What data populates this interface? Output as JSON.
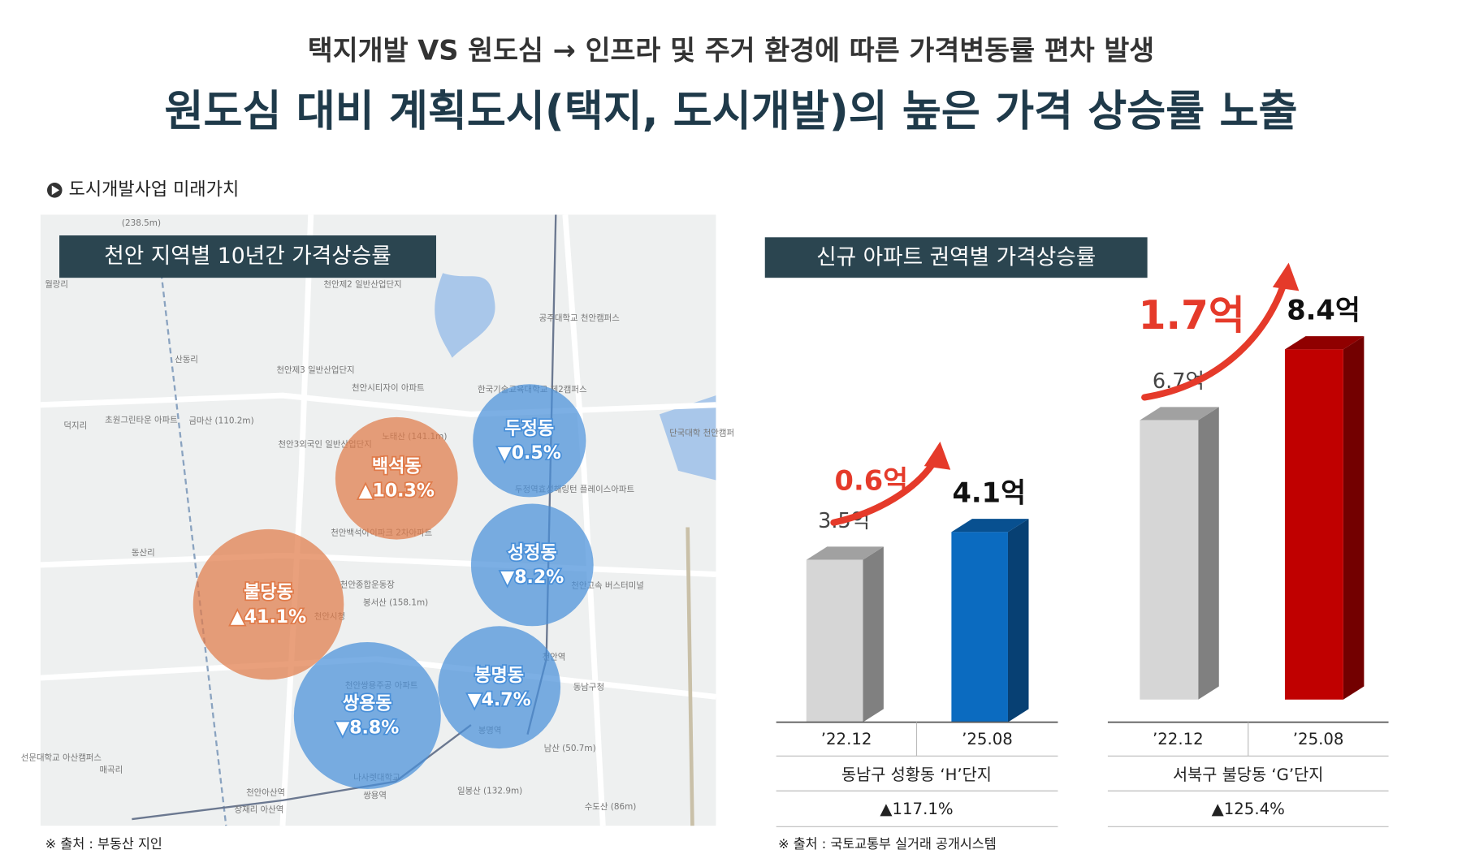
{
  "header": {
    "subtitle": "택지개발 VS 원도심 → 인프라 및 주거 환경에 따른 가격변동률 편차 발생",
    "title": "원도심 대비 계획도시(택지, 도시개발)의 높은 가격 상승률 노출"
  },
  "section_label": "도시개발사업 미래가치",
  "map": {
    "title": "천안 지역별 10년간 가격상승률",
    "regions": [
      {
        "name": "두정동",
        "change": "▼0.5%",
        "color": "#4a90d9"
      },
      {
        "name": "백석동",
        "change": "▲10.3%",
        "color": "#e07b4a"
      },
      {
        "name": "불당동",
        "change": "▲41.1%",
        "color": "#e07b4a"
      },
      {
        "name": "성정동",
        "change": "▼8.2%",
        "color": "#4a90d9"
      },
      {
        "name": "봉명동",
        "change": "▼4.7%",
        "color": "#4a90d9"
      },
      {
        "name": "쌍용동",
        "change": "▼8.8%",
        "color": "#4a90d9"
      }
    ],
    "places": [
      "(238.5m)",
      "월랑리",
      "천안제2 일반산업단지",
      "공주대학교 천안캠퍼스",
      "산동리",
      "천안제3 일반산업단지",
      "천안시티자이 아파트",
      "한국기술교육대학교 제2캠퍼스",
      "덕지리",
      "초원그린타운 아파트",
      "금마산 (110.2m)",
      "노태산 (141.1m)",
      "천안3외국인 일반산업단지",
      "단국대학 천안캠퍼",
      "두정역효성해링턴 플레이스아파트",
      "천안백석아이파크 2차아파트",
      "동산리",
      "천안종합운동장",
      "봉서산 (158.1m)",
      "천안시청",
      "천안고속 버스터미널",
      "천안역",
      "동남구청",
      "천안쌍용주공 아파트",
      "봉명역",
      "선문대학교 아산캠퍼스",
      "매곡리",
      "나사렛대학교",
      "남산 (50.7m)",
      "천안아산역",
      "쌍용역",
      "일봉산 (132.9m)",
      "수도산 (86m)",
      "장재리 아산역"
    ],
    "source": "※ 출처 : 부동산 지인"
  },
  "charts_title": "신규 아파트 권역별 가격상승률",
  "chart_data": [
    {
      "type": "bar",
      "categories": [
        "’22.12",
        "’25.08"
      ],
      "values": [
        3.5,
        4.1
      ],
      "value_labels": [
        "3.5억",
        "4.1억"
      ],
      "colors": [
        "#d6d6d6",
        "#0b6bc0"
      ],
      "increase": "0.6억",
      "group": "동남구 성황동 ‘H’단지",
      "rate": "▲117.1%"
    },
    {
      "type": "bar",
      "categories": [
        "’22.12",
        "’25.08"
      ],
      "values": [
        6.7,
        8.4
      ],
      "value_labels": [
        "6.7억",
        "8.4억"
      ],
      "colors": [
        "#d6d6d6",
        "#c00000"
      ],
      "increase": "1.7억",
      "group": "서북구 불당동 ‘G’단지",
      "rate": "▲125.4%"
    }
  ],
  "source": "※ 출처 : 국토교통부 실거래 공개시스템"
}
